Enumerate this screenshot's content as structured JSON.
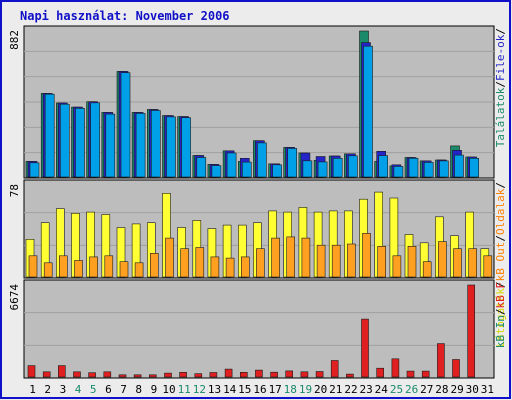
{
  "chart_data": {
    "type": "bar",
    "title": "Napi használat: November 2006",
    "x": [
      "1",
      "2",
      "3",
      "4",
      "5",
      "6",
      "7",
      "8",
      "9",
      "10",
      "11",
      "12",
      "13",
      "14",
      "15",
      "16",
      "17",
      "18",
      "19",
      "20",
      "21",
      "22",
      "23",
      "24",
      "25",
      "26",
      "27",
      "28",
      "29",
      "30",
      "31"
    ],
    "weekend_days": [
      4,
      5,
      11,
      12,
      18,
      19,
      25,
      26
    ],
    "colors": {
      "border": "#1010c8",
      "panel_bg": "#bdbdbd",
      "page_bg": "#ececec",
      "grid": "#a0a0a0",
      "visits": "#1a8a6a",
      "pages": "#2424c8",
      "hits": "#00a0e8",
      "files": "#ffff33",
      "kb_in": "#ffa020",
      "kb_out": "#ffa020",
      "kb_f": "#e02020",
      "weekday_label": "#000000",
      "weekend_label": "#1a8a6a"
    },
    "panels": [
      {
        "name": "top",
        "ymax_label": "882",
        "ymax": 882,
        "series": [
          {
            "key": "visits",
            "label": "Találatok",
            "color": "#1a8a6a",
            "values": [
              94,
              505,
              447,
              422,
              455,
              390,
              638,
              390,
              408,
              371,
              365,
              130,
              76,
              158,
              94,
              219,
              80,
              179,
              145,
              101,
              127,
              140,
              882,
              94,
              67,
              118,
              97,
              103,
              188,
              121,
              0
            ]
          },
          {
            "key": "pages",
            "label": "Lapok",
            "color": "#2424c8",
            "values": [
              94,
              505,
              447,
              422,
              455,
              390,
              638,
              390,
              408,
              371,
              365,
              130,
              76,
              158,
              113,
              219,
              80,
              179,
              145,
              124,
              127,
              140,
              812,
              155,
              74,
              118,
              97,
              103,
              161,
              121,
              0
            ]
          },
          {
            "key": "hits",
            "label": "File-ok",
            "color": "#00a0e8",
            "values": [
              86,
              500,
              440,
              415,
              448,
              380,
              630,
              384,
              402,
              363,
              358,
              118,
              69,
              145,
              90,
              206,
              74,
              173,
              98,
              91,
              113,
              128,
              790,
              129,
              64,
              113,
              88,
              97,
              132,
              113,
              0
            ]
          }
        ]
      },
      {
        "name": "middle",
        "ymax_label": "78",
        "ymax": 78,
        "series": [
          {
            "key": "files",
            "label": "Látogatók",
            "color": "#ffff33",
            "values": [
              32,
              46,
              58,
              54,
              55,
              53,
              42,
              45,
              46,
              71,
              42,
              48,
              41,
              44,
              44,
              46,
              56,
              55,
              59,
              55,
              56,
              56,
              66,
              72,
              67,
              36,
              29,
              51,
              35,
              55,
              24
            ]
          },
          {
            "key": "kb_in",
            "label": "Oldalak",
            "color": "#ffa020",
            "values": [
              18,
              12,
              18,
              14,
              17,
              18,
              13,
              12,
              20,
              33,
              24,
              25,
              17,
              16,
              17,
              24,
              33,
              34,
              33,
              27,
              27,
              28,
              37,
              26,
              18,
              26,
              13,
              30,
              24,
              24,
              18
            ]
          }
        ]
      },
      {
        "name": "bottom",
        "ymax_label": "6674",
        "ymax": 6674,
        "series": [
          {
            "key": "kb_f",
            "label": "kB F",
            "color": "#e02020",
            "values": [
              830,
              380,
              830,
              380,
              310,
              380,
              160,
              160,
              160,
              280,
              340,
              240,
              330,
              570,
              340,
              500,
              350,
              440,
              380,
              400,
              1200,
              210,
              4200,
              640,
              1320,
              430,
              430,
              2420,
              1270,
              6674,
              0
            ]
          }
        ]
      }
    ],
    "right_legend": [
      {
        "text": "Találatok",
        "color": "#1a8a6a",
        "panel": "top"
      },
      {
        "text": "/",
        "color": "#000000",
        "panel": "top"
      },
      {
        "text": "File-ok",
        "color": "#2424c8",
        "panel": "top"
      },
      {
        "text": "/",
        "color": "#000000",
        "panel": "top"
      },
      {
        "text": "Látogatók",
        "color": "#d8d800",
        "panel": "middle"
      },
      {
        "text": "/",
        "color": "#000000",
        "panel": "middle"
      },
      {
        "text": "kB Out",
        "color": "#ff8000",
        "panel": "middle"
      },
      {
        "text": "/",
        "color": "#000000",
        "panel": "middle"
      },
      {
        "text": "Oldalak",
        "color": "#ff8000",
        "panel": "middle"
      },
      {
        "text": "/",
        "color": "#000000",
        "panel": "middle"
      },
      {
        "text": "kB In",
        "color": "#1a8a6a",
        "panel": "bottom"
      },
      {
        "text": "/",
        "color": "#000000",
        "panel": "bottom"
      },
      {
        "text": "kB F",
        "color": "#e02020",
        "panel": "bottom"
      }
    ]
  }
}
